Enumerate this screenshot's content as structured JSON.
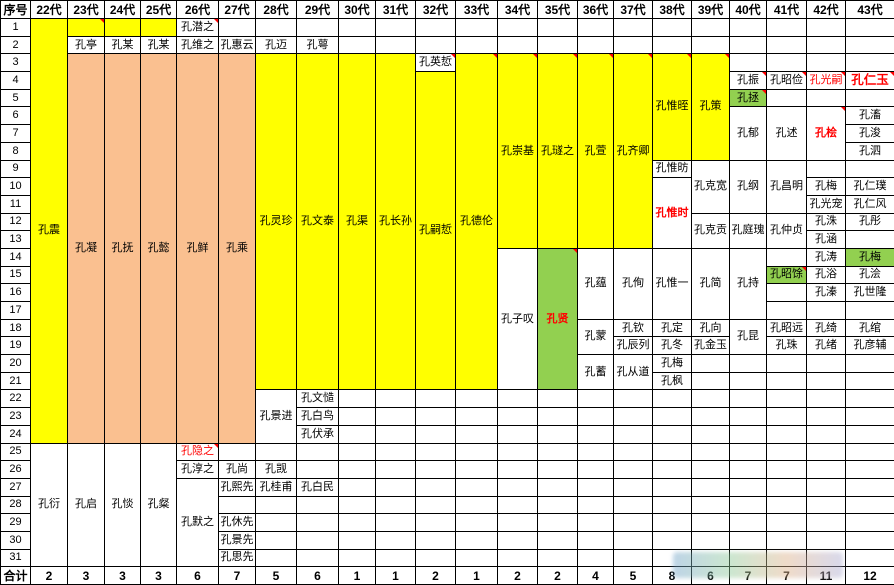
{
  "sheet": {
    "corner_label": "序号",
    "footer_label": "合计",
    "generations": [
      "22代",
      "23代",
      "24代",
      "25代",
      "26代",
      "27代",
      "28代",
      "29代",
      "30代",
      "31代",
      "32代",
      "33代",
      "34代",
      "35代",
      "36代",
      "37代",
      "38代",
      "39代",
      "40代",
      "41代",
      "42代",
      "43代"
    ],
    "row_numbers": [
      "1",
      "2",
      "3",
      "4",
      "5",
      "6",
      "7",
      "8",
      "9",
      "10",
      "11",
      "12",
      "13",
      "14",
      "15",
      "16",
      "17",
      "18",
      "19",
      "20",
      "21",
      "22",
      "23",
      "24",
      "25",
      "26",
      "27",
      "28",
      "29",
      "30",
      "31"
    ],
    "footer_counts": [
      "2",
      "3",
      "3",
      "3",
      "6",
      "7",
      "5",
      "6",
      "1",
      "1",
      "2",
      "1",
      "2",
      "2",
      "4",
      "5",
      "8",
      "6",
      "7",
      "7",
      "11",
      "12"
    ],
    "colors": {
      "yellow": "#FFFF00",
      "peach": "#FAC090",
      "green": "#92D050",
      "highlight_red": "#FF0000",
      "grid": "#000000"
    },
    "columns": [
      {
        "g": "22代",
        "cells": [
          {
            "r": 1,
            "s": 24,
            "t": "孔震",
            "bg": "y"
          },
          {
            "r": 25,
            "s": 7,
            "t": "孔衍"
          }
        ]
      },
      {
        "g": "23代",
        "cells": [
          {
            "r": 1,
            "t": "",
            "bg": "y",
            "m": 1
          },
          {
            "r": 2,
            "t": "孔亭"
          },
          {
            "r": 3,
            "s": 22,
            "t": "孔凝",
            "bg": "p"
          },
          {
            "r": 25,
            "s": 7,
            "t": "孔启"
          }
        ]
      },
      {
        "g": "24代",
        "cells": [
          {
            "r": 1,
            "t": "",
            "bg": "y"
          },
          {
            "r": 2,
            "t": "孔某"
          },
          {
            "r": 3,
            "s": 22,
            "t": "孔抚",
            "bg": "p"
          },
          {
            "r": 25,
            "s": 7,
            "t": "孔惔"
          }
        ]
      },
      {
        "g": "25代",
        "cells": [
          {
            "r": 1,
            "t": "",
            "bg": "y"
          },
          {
            "r": 2,
            "t": "孔某"
          },
          {
            "r": 3,
            "s": 22,
            "t": "孔懿",
            "bg": "p"
          },
          {
            "r": 25,
            "s": 7,
            "t": "孔粲"
          }
        ]
      },
      {
        "g": "26代",
        "cells": [
          {
            "r": 1,
            "t": "孔潜之",
            "m": 1
          },
          {
            "r": 2,
            "t": "孔维之"
          },
          {
            "r": 3,
            "s": 22,
            "t": "孔鲜",
            "bg": "p"
          },
          {
            "r": 25,
            "t": "孔隐之",
            "c": "r",
            "m": 1
          },
          {
            "r": 26,
            "t": "孔淳之"
          },
          {
            "r": 27,
            "s": 5,
            "t": "孔默之"
          }
        ]
      },
      {
        "g": "27代",
        "cells": [
          {
            "r": 2,
            "t": "孔惠云"
          },
          {
            "r": 3,
            "s": 22,
            "t": "孔乘",
            "bg": "p"
          },
          {
            "r": 26,
            "t": "孔尚"
          },
          {
            "r": 27,
            "t": "孔熙先"
          },
          {
            "r": 29,
            "t": "孔休先"
          },
          {
            "r": 30,
            "t": "孔景先"
          },
          {
            "r": 31,
            "t": "孔思先"
          }
        ]
      },
      {
        "g": "28代",
        "cells": [
          {
            "r": 2,
            "t": "孔迈"
          },
          {
            "r": 3,
            "s": 19,
            "t": "孔灵珍",
            "bg": "y"
          },
          {
            "r": 22,
            "s": 3,
            "t": "孔景进"
          },
          {
            "r": 26,
            "t": "孔觊"
          },
          {
            "r": 27,
            "t": "孔桂甫"
          }
        ]
      },
      {
        "g": "29代",
        "cells": [
          {
            "r": 2,
            "t": "孔萼"
          },
          {
            "r": 3,
            "s": 19,
            "t": "孔文泰",
            "bg": "y"
          },
          {
            "r": 22,
            "t": "孔文慥"
          },
          {
            "r": 23,
            "t": "孔白鸟"
          },
          {
            "r": 24,
            "t": "孔伏承"
          },
          {
            "r": 27,
            "t": "孔白民"
          }
        ]
      },
      {
        "g": "30代",
        "cells": [
          {
            "r": 3,
            "s": 19,
            "t": "孔渠",
            "bg": "y"
          }
        ]
      },
      {
        "g": "31代",
        "cells": [
          {
            "r": 3,
            "s": 19,
            "t": "孔长孙",
            "bg": "y"
          }
        ]
      },
      {
        "g": "32代",
        "cells": [
          {
            "r": 3,
            "t": "孔英悊",
            "m": 1
          },
          {
            "r": 4,
            "s": 18,
            "t": "孔嗣悊",
            "bg": "y"
          }
        ]
      },
      {
        "g": "33代",
        "cells": [
          {
            "r": 3,
            "s": 19,
            "t": "孔德伦",
            "bg": "y",
            "m": 1
          }
        ]
      },
      {
        "g": "34代",
        "cells": [
          {
            "r": 3,
            "s": 11,
            "t": "孔崇基",
            "bg": "y",
            "m": 1
          },
          {
            "r": 14,
            "s": 8,
            "t": "孔子叹"
          }
        ]
      },
      {
        "g": "35代",
        "cells": [
          {
            "r": 3,
            "s": 11,
            "t": "孔璲之",
            "bg": "y",
            "m": 1
          },
          {
            "r": 14,
            "s": 8,
            "t": "孔贤",
            "bg": "g",
            "c": "r",
            "b": 1,
            "m": 1
          }
        ]
      },
      {
        "g": "36代",
        "cells": [
          {
            "r": 3,
            "s": 11,
            "t": "孔萱",
            "bg": "y",
            "m": 1
          },
          {
            "r": 14,
            "s": 4,
            "t": "孔蕴"
          },
          {
            "r": 18,
            "s": 2,
            "t": "孔蒙"
          },
          {
            "r": 20,
            "s": 2,
            "t": "孔蓄"
          }
        ]
      },
      {
        "g": "37代",
        "cells": [
          {
            "r": 3,
            "s": 11,
            "t": "孔齐卿",
            "bg": "y",
            "m": 1
          },
          {
            "r": 14,
            "s": 4,
            "t": "孔侚"
          },
          {
            "r": 18,
            "t": "孔钦"
          },
          {
            "r": 19,
            "t": "孔辰列"
          },
          {
            "r": 20,
            "s": 2,
            "t": "孔从道"
          }
        ]
      },
      {
        "g": "38代",
        "cells": [
          {
            "r": 3,
            "s": 6,
            "t": "孔惟晊",
            "bg": "y",
            "m": 1
          },
          {
            "r": 9,
            "t": "孔惟昉"
          },
          {
            "r": 10,
            "s": 4,
            "t": "孔惟时",
            "c": "r",
            "b": 1
          },
          {
            "r": 14,
            "s": 4,
            "t": "孔惟一"
          },
          {
            "r": 18,
            "t": "孔定"
          },
          {
            "r": 19,
            "t": "孔冬"
          },
          {
            "r": 20,
            "t": "孔梅"
          },
          {
            "r": 21,
            "t": "孔枫"
          }
        ]
      },
      {
        "g": "39代",
        "cells": [
          {
            "r": 3,
            "s": 6,
            "t": "孔策",
            "bg": "y",
            "m": 1
          },
          {
            "r": 9,
            "s": 3,
            "t": "孔克宽"
          },
          {
            "r": 12,
            "s": 2,
            "t": "孔克贡"
          },
          {
            "r": 14,
            "s": 4,
            "t": "孔简"
          },
          {
            "r": 18,
            "t": "孔向"
          },
          {
            "r": 19,
            "t": "孔金玉"
          }
        ]
      },
      {
        "g": "40代",
        "cells": [
          {
            "r": 4,
            "t": "孔振",
            "m": 1
          },
          {
            "r": 5,
            "t": "孔拯",
            "bg": "g",
            "m": 1
          },
          {
            "r": 6,
            "s": 3,
            "t": "孔郁"
          },
          {
            "r": 9,
            "s": 3,
            "t": "孔纲"
          },
          {
            "r": 12,
            "s": 2,
            "t": "孔庭瑰"
          },
          {
            "r": 14,
            "s": 4,
            "t": "孔持"
          },
          {
            "r": 18,
            "s": 2,
            "t": "孔昆"
          }
        ]
      },
      {
        "g": "41代",
        "cells": [
          {
            "r": 4,
            "t": "孔昭俭",
            "m": 1
          },
          {
            "r": 6,
            "s": 3,
            "t": "孔述"
          },
          {
            "r": 9,
            "s": 3,
            "t": "孔昌明"
          },
          {
            "r": 12,
            "s": 2,
            "t": "孔仲贞"
          },
          {
            "r": 15,
            "t": "孔昭馀",
            "bg": "g",
            "m": 1
          },
          {
            "r": 18,
            "t": "孔昭远"
          },
          {
            "r": 19,
            "t": "孔珠"
          }
        ]
      },
      {
        "g": "42代",
        "cells": [
          {
            "r": 4,
            "t": "孔光嗣",
            "c": "r",
            "m": 1
          },
          {
            "r": 6,
            "s": 3,
            "t": "孔桧",
            "c": "r",
            "b": 1,
            "m": 1
          },
          {
            "r": 10,
            "t": "孔梅"
          },
          {
            "r": 11,
            "t": "孔光宠"
          },
          {
            "r": 12,
            "t": "孔洙"
          },
          {
            "r": 13,
            "t": "孔涵"
          },
          {
            "r": 14,
            "t": "孔涛"
          },
          {
            "r": 15,
            "t": "孔浴"
          },
          {
            "r": 16,
            "t": "孔溱"
          },
          {
            "r": 18,
            "t": "孔绮"
          },
          {
            "r": 19,
            "t": "孔绪"
          }
        ]
      },
      {
        "g": "43代",
        "cells": [
          {
            "r": 4,
            "t": "孔仁玉",
            "c": "r",
            "big": 1,
            "m": 1
          },
          {
            "r": 6,
            "t": "孔滀"
          },
          {
            "r": 7,
            "t": "孔浚"
          },
          {
            "r": 8,
            "t": "孔泗"
          },
          {
            "r": 10,
            "t": "孔仁璞"
          },
          {
            "r": 11,
            "t": "孔仁风"
          },
          {
            "r": 12,
            "t": "孔彤"
          },
          {
            "r": 14,
            "t": "孔梅",
            "bg": "g"
          },
          {
            "r": 15,
            "t": "孔浍"
          },
          {
            "r": 16,
            "t": "孔世隆"
          },
          {
            "r": 18,
            "t": "孔绾"
          },
          {
            "r": 19,
            "t": "孔彦辅"
          }
        ]
      }
    ]
  }
}
